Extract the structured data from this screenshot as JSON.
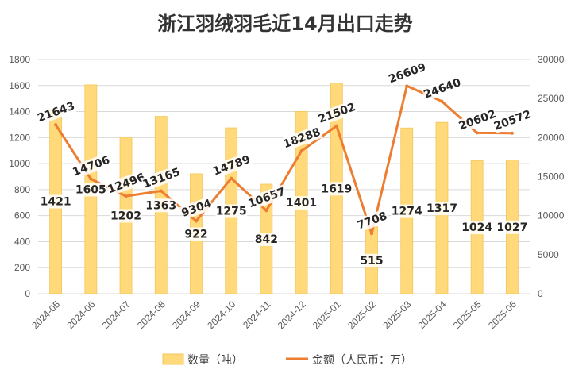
{
  "chart_data": {
    "type": "bar",
    "title": "浙江羽绒羽毛近14月出口走势",
    "categories": [
      "2024-05",
      "2024-06",
      "2024-07",
      "2024-08",
      "2024-09",
      "2024-10",
      "2024-11",
      "2024-12",
      "2025-01",
      "2025-02",
      "2025-03",
      "2025-04",
      "2025-05",
      "2025-06"
    ],
    "series": [
      {
        "name": "数量（吨）",
        "type": "bar",
        "axis": "left",
        "color": "#FFD97A",
        "values": [
          1421,
          1605,
          1202,
          1363,
          922,
          1275,
          842,
          1401,
          1619,
          515,
          1274,
          1317,
          1024,
          1027
        ]
      },
      {
        "name": "金额（人民币：万）",
        "type": "line",
        "axis": "right",
        "color": "#ED7D31",
        "values": [
          21643,
          14706,
          12496,
          13165,
          9304,
          14789,
          10657,
          18288,
          21502,
          7708,
          26609,
          24640,
          20602,
          20572
        ]
      }
    ],
    "y_left": {
      "ylim": [
        0,
        1800
      ],
      "ticks": [
        "0",
        "200",
        "400",
        "600",
        "800",
        "1000",
        "1200",
        "1400",
        "1600",
        "1800"
      ]
    },
    "y_right": {
      "ylim": [
        0,
        30000
      ],
      "ticks": [
        "0",
        "5000",
        "10000",
        "15000",
        "20000",
        "25000",
        "30000"
      ]
    },
    "grid": true,
    "legend_position": "bottom"
  }
}
